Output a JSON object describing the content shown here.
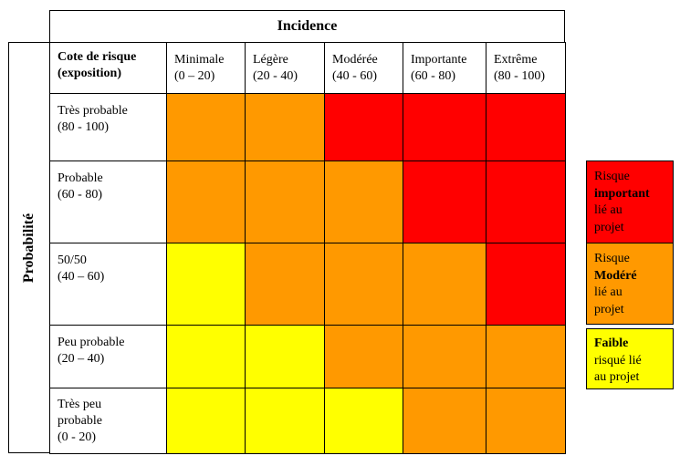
{
  "incidence": {
    "title": "Incidence"
  },
  "probability": {
    "title": "Probabilité"
  },
  "corner": {
    "line1": "Cote de risque",
    "line2": "(exposition)"
  },
  "columns": [
    {
      "name": "Minimale",
      "range": "(0 – 20)"
    },
    {
      "name": "Légère",
      "range": "(20 - 40)"
    },
    {
      "name": "Modérée",
      "range": "(40 - 60)"
    },
    {
      "name": "Importante",
      "range": "(60 - 80)"
    },
    {
      "name": "Extrême",
      "range": "(80 - 100)"
    }
  ],
  "rows": [
    {
      "lines": [
        "Très probable",
        "(80 - 100)"
      ],
      "levels": [
        "moderate",
        "moderate",
        "high",
        "high",
        "high"
      ]
    },
    {
      "lines": [
        "Probable",
        "(60 - 80)"
      ],
      "levels": [
        "moderate",
        "moderate",
        "moderate",
        "high",
        "high"
      ]
    },
    {
      "lines": [
        "50/50",
        "(40 – 60)"
      ],
      "levels": [
        "low",
        "moderate",
        "moderate",
        "moderate",
        "high"
      ]
    },
    {
      "lines": [
        "Peu probable",
        "(20 – 40)"
      ],
      "levels": [
        "low",
        "low",
        "moderate",
        "moderate",
        "moderate"
      ]
    },
    {
      "lines": [
        "Très peu",
        "probable",
        "(0 - 20)"
      ],
      "levels": [
        "low",
        "low",
        "low",
        "moderate",
        "moderate"
      ]
    }
  ],
  "colors": {
    "high": "#ff0000",
    "moderate": "#ff9900",
    "low": "#ffff00"
  },
  "legend": {
    "high": {
      "l1": "Risque",
      "l2": "important",
      "l3": "lié au",
      "l4": "projet"
    },
    "moderate": {
      "l1": "Risque",
      "l2": "Modéré",
      "l3": "lié au",
      "l4": "projet"
    },
    "low": {
      "l1": "Faible",
      "l2": "risqué lié",
      "l3": "au projet"
    }
  }
}
